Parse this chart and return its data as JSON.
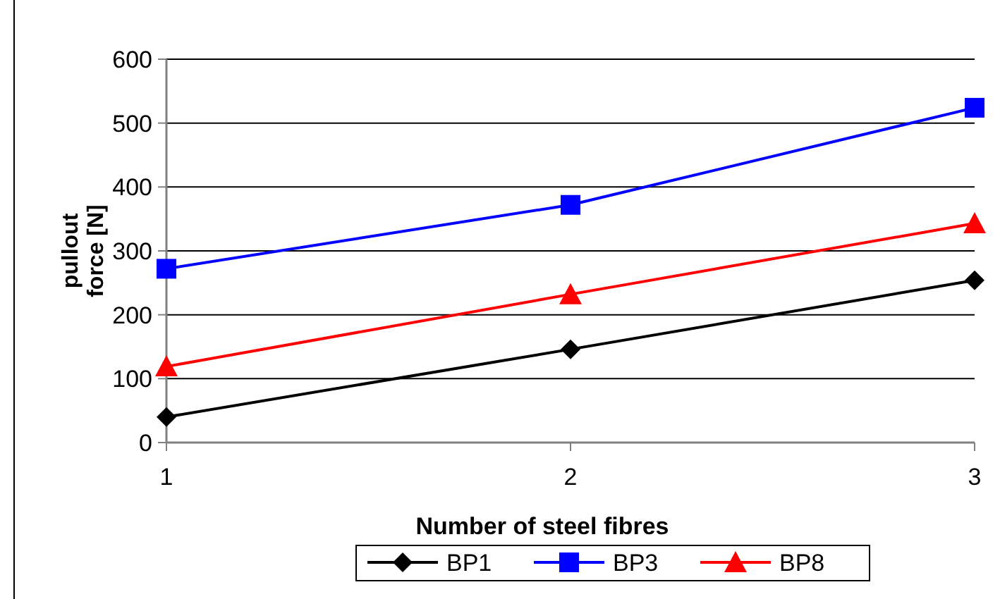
{
  "chart_data": {
    "type": "line",
    "xlabel": "Number of steel fibres",
    "ylabel": "pullout force [N]",
    "categories": [
      "1",
      "2",
      "3"
    ],
    "series": [
      {
        "name": "BP1",
        "color": "#000000",
        "marker": "diamond",
        "values": [
          40,
          146,
          254
        ]
      },
      {
        "name": "BP3",
        "color": "#0000ff",
        "marker": "square",
        "values": [
          272,
          372,
          524
        ]
      },
      {
        "name": "BP8",
        "color": "#ff0000",
        "marker": "triangle",
        "values": [
          119,
          232,
          343
        ]
      }
    ],
    "ylim": [
      0,
      600
    ],
    "yticks": [
      0,
      100,
      200,
      300,
      400,
      500,
      600
    ],
    "grid": "y",
    "legend": "bottom",
    "line_style": "solid"
  }
}
